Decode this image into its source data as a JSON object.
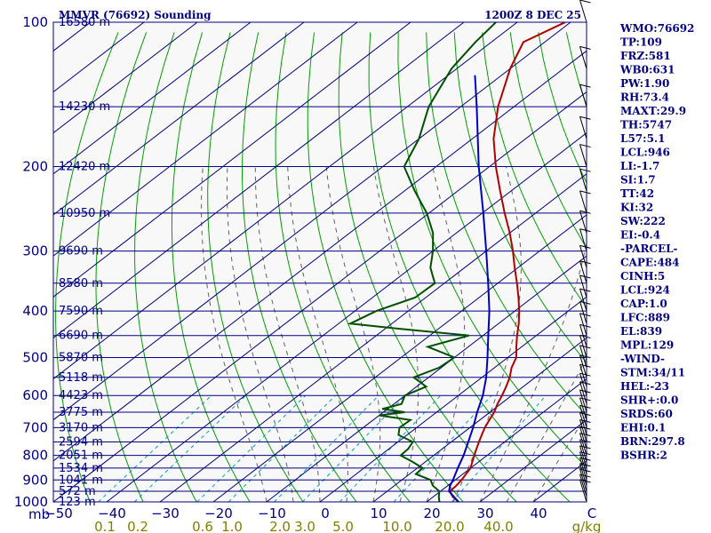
{
  "title": {
    "station": "MMVR (76692) Sounding",
    "valid": "1200Z  8 DEC 25"
  },
  "colors": {
    "background": "#f8f8f8",
    "axis": "#000080",
    "isobar": "#000080",
    "isotherm": "#000080",
    "dry_adiabat": "#00a000",
    "moist_adiabat": "#606060",
    "mixing_ratio": "#00a0c0",
    "temperature": "#b00000",
    "dewpoint": "#005000",
    "parcel": "#0000c0",
    "wind_barb": "#000000",
    "mixing_label": "#808000"
  },
  "axes": {
    "pressure_labels": [
      "100",
      "200",
      "300",
      "400",
      "500",
      "600",
      "700",
      "800",
      "900",
      "1000"
    ],
    "pressure_unit_label": "mb",
    "temp_labels": [
      "−50",
      "−40",
      "−30",
      "−20",
      "−10",
      "0",
      "10",
      "20",
      "30",
      "40",
      "C"
    ],
    "mixing_labels": [
      "0.1",
      "0.2",
      "0.6",
      "1.0",
      "2.0",
      "3.0",
      "5.0",
      "10.0",
      "20.0",
      "40.0",
      "g/kg"
    ],
    "height_labels": [
      {
        "p": 100,
        "text": "16580 m"
      },
      {
        "p": 150,
        "text": "14230 m"
      },
      {
        "p": 200,
        "text": "12420 m"
      },
      {
        "p": 250,
        "text": "10950 m"
      },
      {
        "p": 300,
        "text": "9690 m"
      },
      {
        "p": 350,
        "text": "8580 m"
      },
      {
        "p": 400,
        "text": "7590 m"
      },
      {
        "p": 450,
        "text": "6690 m"
      },
      {
        "p": 500,
        "text": "5870 m"
      },
      {
        "p": 550,
        "text": "5118 m"
      },
      {
        "p": 600,
        "text": "4423 m"
      },
      {
        "p": 650,
        "text": "3775 m"
      },
      {
        "p": 700,
        "text": "3170 m"
      },
      {
        "p": 750,
        "text": "2594 m"
      },
      {
        "p": 800,
        "text": "2051 m"
      },
      {
        "p": 850,
        "text": "1534 m"
      },
      {
        "p": 900,
        "text": "1041 m"
      },
      {
        "p": 950,
        "text": "572 m"
      },
      {
        "p": 1000,
        "text": "123 m"
      }
    ]
  },
  "indices": [
    "WMO:76692",
    "TP:109",
    "FRZ:581",
    "WB0:631",
    "PW:1.90",
    "RH:73.4",
    "MAXT:29.9",
    "TH:5747",
    "L57:5.1",
    "LCL:946",
    "LI:-1.7",
    "SI:1.7",
    "TT:42",
    "KI:32",
    "SW:222",
    "EI:-0.4",
    "-PARCEL-",
    "CAPE:484",
    "CINH:5",
    "LCL:924",
    "CAP:1.0",
    "LFC:889",
    "EL:839",
    "MPL:129",
    "-WIND-",
    "STM:34/11",
    "HEL:-23",
    "SHR+:0.0",
    "SRDS:60",
    "EHI:0.1",
    "BRN:297.8",
    "BSHR:2"
  ],
  "chart_data": {
    "type": "skew-t",
    "title": "MMVR (76692) Sounding",
    "subtitle": "1200Z  8 DEC 25",
    "ylim": [
      1000,
      100
    ],
    "xlim": [
      -50,
      50
    ],
    "y_scale": "log",
    "series": [
      {
        "name": "temperature",
        "points": [
          [
            1013,
            27.8
          ],
          [
            1000,
            26.0
          ],
          [
            975,
            23.6
          ],
          [
            950,
            21.8
          ],
          [
            925,
            21.6
          ],
          [
            900,
            21.2
          ],
          [
            875,
            20.6
          ],
          [
            850,
            20.0
          ],
          [
            825,
            18.8
          ],
          [
            800,
            17.6
          ],
          [
            775,
            16.4
          ],
          [
            750,
            15.2
          ],
          [
            725,
            14.0
          ],
          [
            700,
            12.8
          ],
          [
            675,
            11.8
          ],
          [
            650,
            10.8
          ],
          [
            625,
            9.4
          ],
          [
            600,
            8.2
          ],
          [
            575,
            6.8
          ],
          [
            550,
            5.2
          ],
          [
            525,
            3.2
          ],
          [
            500,
            1.6
          ],
          [
            475,
            -1.0
          ],
          [
            450,
            -3.6
          ],
          [
            425,
            -6.2
          ],
          [
            400,
            -9.2
          ],
          [
            375,
            -12.6
          ],
          [
            350,
            -16.4
          ],
          [
            325,
            -20.6
          ],
          [
            300,
            -25.0
          ],
          [
            275,
            -30.0
          ],
          [
            250,
            -35.8
          ],
          [
            225,
            -42.0
          ],
          [
            200,
            -48.8
          ],
          [
            175,
            -56.0
          ],
          [
            150,
            -63.0
          ],
          [
            125,
            -70.0
          ],
          [
            110,
            -74.0
          ],
          [
            100,
            -71.0
          ]
        ]
      },
      {
        "name": "dewpoint",
        "points": [
          [
            1013,
            22.8
          ],
          [
            1000,
            22.4
          ],
          [
            975,
            21.0
          ],
          [
            950,
            19.8
          ],
          [
            925,
            17.2
          ],
          [
            900,
            15.4
          ],
          [
            875,
            11.2
          ],
          [
            850,
            11.0
          ],
          [
            825,
            7.6
          ],
          [
            800,
            3.8
          ],
          [
            775,
            3.6
          ],
          [
            750,
            2.8
          ],
          [
            725,
            -1.6
          ],
          [
            700,
            -3.2
          ],
          [
            675,
            -3.0
          ],
          [
            660,
            -10.0
          ],
          [
            650,
            -6.0
          ],
          [
            640,
            -11.0
          ],
          [
            625,
            -8.6
          ],
          [
            600,
            -10.0
          ],
          [
            575,
            -8.2
          ],
          [
            550,
            -12.8
          ],
          [
            525,
            -10.4
          ],
          [
            500,
            -10.0
          ],
          [
            475,
            -17.6
          ],
          [
            450,
            -12.6
          ],
          [
            435,
            -28.0
          ],
          [
            425,
            -37.8
          ],
          [
            400,
            -36.0
          ],
          [
            375,
            -32.0
          ],
          [
            350,
            -31.8
          ],
          [
            325,
            -36.4
          ],
          [
            300,
            -40.0
          ],
          [
            275,
            -44.4
          ],
          [
            250,
            -50.4
          ],
          [
            225,
            -58.0
          ],
          [
            200,
            -66.0
          ],
          [
            175,
            -70.0
          ],
          [
            150,
            -76.0
          ],
          [
            125,
            -81.0
          ],
          [
            110,
            -83.0
          ],
          [
            100,
            -84.0
          ]
        ]
      },
      {
        "name": "parcel",
        "points": [
          [
            1000,
            26.0
          ],
          [
            950,
            21.6
          ],
          [
            924,
            20.4
          ],
          [
            900,
            19.6
          ],
          [
            850,
            17.6
          ],
          [
            800,
            15.6
          ],
          [
            750,
            13.2
          ],
          [
            700,
            10.6
          ],
          [
            650,
            7.6
          ],
          [
            600,
            4.6
          ],
          [
            550,
            0.8
          ],
          [
            500,
            -3.8
          ],
          [
            450,
            -9.0
          ],
          [
            400,
            -14.8
          ],
          [
            350,
            -21.8
          ],
          [
            300,
            -30.0
          ],
          [
            250,
            -39.8
          ],
          [
            200,
            -52.0
          ],
          [
            150,
            -67.0
          ],
          [
            129,
            -75.0
          ]
        ]
      }
    ]
  }
}
